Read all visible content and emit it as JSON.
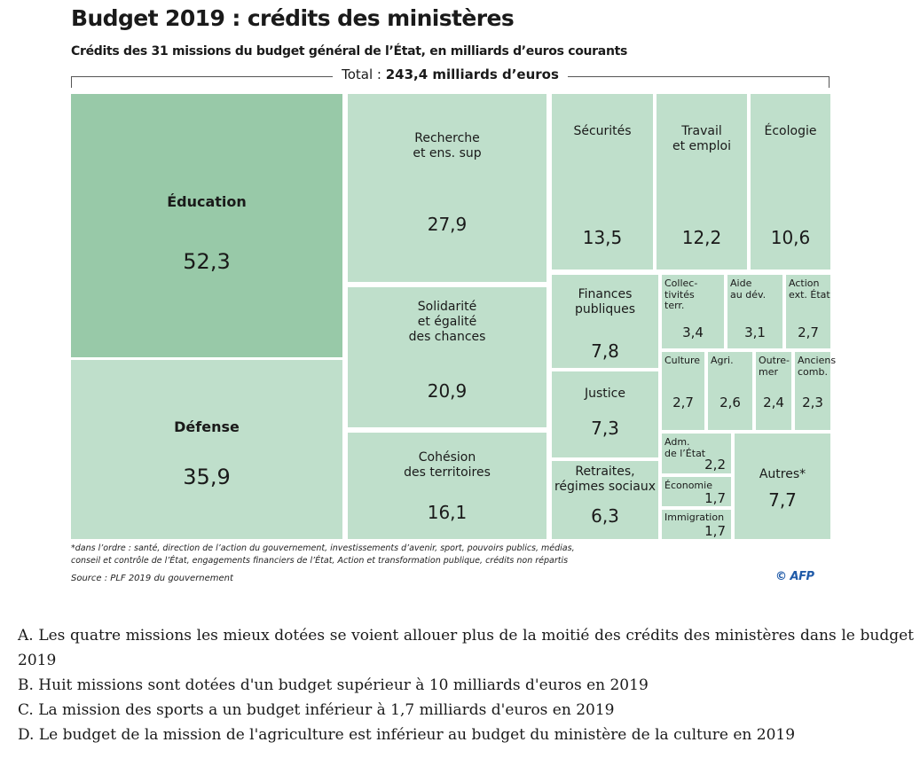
{
  "chart_data": {
    "type": "treemap",
    "title": "Budget 2019 : crédits des ministères",
    "subtitle": "Crédits des 31 missions du budget général de l’État, en milliards d’euros courants",
    "total_label": "Total :",
    "total_value": "243,4 milliards d’euros",
    "unit": "milliards d’euros",
    "items": [
      {
        "name": "Éducation",
        "value": 52.3,
        "label": "52,3",
        "highlight": true
      },
      {
        "name": "Défense",
        "value": 35.9,
        "label": "35,9"
      },
      {
        "name": "Recherche\net ens. sup",
        "value": 27.9,
        "label": "27,9"
      },
      {
        "name": "Solidarité\net égalité\ndes chances",
        "value": 20.9,
        "label": "20,9"
      },
      {
        "name": "Cohésion\ndes territoires",
        "value": 16.1,
        "label": "16,1"
      },
      {
        "name": "Sécurités",
        "value": 13.5,
        "label": "13,5"
      },
      {
        "name": "Travail\net emploi",
        "value": 12.2,
        "label": "12,2"
      },
      {
        "name": "Écologie",
        "value": 10.6,
        "label": "10,6"
      },
      {
        "name": "Finances\npubliques",
        "value": 7.8,
        "label": "7,8"
      },
      {
        "name": "Justice",
        "value": 7.3,
        "label": "7,3"
      },
      {
        "name": "Retraites,\nrégimes sociaux",
        "value": 6.3,
        "label": "6,3"
      },
      {
        "name": "Collec-\ntivités\nterr.",
        "value": 3.4,
        "label": "3,4"
      },
      {
        "name": "Aide\nau dév.",
        "value": 3.1,
        "label": "3,1"
      },
      {
        "name": "Action\next. État",
        "value": 2.7,
        "label": "2,7"
      },
      {
        "name": "Culture",
        "value": 2.7,
        "label": "2,7"
      },
      {
        "name": "Agri.",
        "value": 2.6,
        "label": "2,6"
      },
      {
        "name": "Outre-\nmer",
        "value": 2.4,
        "label": "2,4"
      },
      {
        "name": "Anciens\ncomb.",
        "value": 2.3,
        "label": "2,3"
      },
      {
        "name": "Adm.\nde l’État",
        "value": 2.2,
        "label": "2,2"
      },
      {
        "name": "Économie",
        "value": 1.7,
        "label": "1,7"
      },
      {
        "name": "Immigration",
        "value": 1.7,
        "label": "1,7"
      },
      {
        "name": "Autres*",
        "value": 7.7,
        "label": "7,7"
      }
    ],
    "footnote": "*dans l’ordre : santé, direction de l’action du gouvernement, investissements d’avenir, sport, pouvoirs publics, médias,\nconseil et contrôle de l’État, engagements financiers de l’État, Action et transformation publique, crédits non répartis",
    "source": "Source : PLF 2019 du gouvernement",
    "credit": "© AFP",
    "colors": {
      "highlight": "#98c9a8",
      "base": "#bfdfcb",
      "gap": "#ffffff"
    }
  },
  "options": [
    "A. Les quatre missions les mieux dotées se voient allouer plus de la moitié des crédits des ministères dans le budget 2019",
    "B. Huit missions sont dotées d'un budget supérieur à 10 milliards d'euros en 2019",
    "C. La mission des sports a un budget inférieur à 1,7 milliards d'euros en 2019",
    "D. Le budget de la mission de l'agriculture est inférieur au budget du ministère de la culture en 2019"
  ]
}
